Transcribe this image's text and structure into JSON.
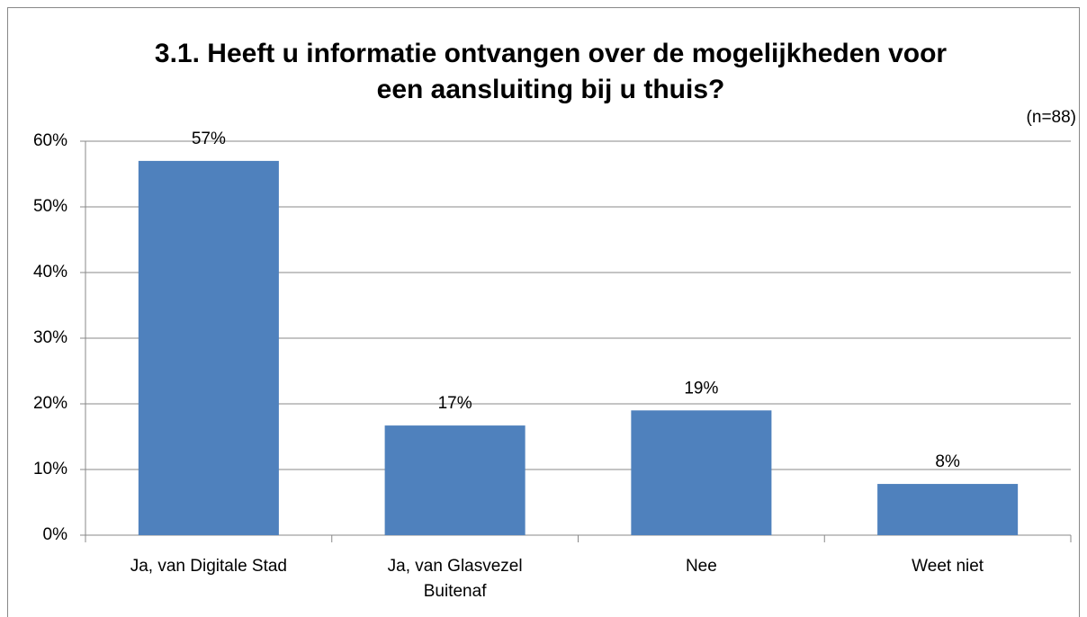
{
  "chart_data": {
    "type": "bar",
    "title": "3.1. Heeft u informatie ontvangen over de mogelijkheden voor een aansluiting bij u thuis?",
    "annotation": "(n=88)",
    "categories": [
      "Ja, van Digitale Stad",
      "Ja, van Glasvezel Buitenaf",
      "Nee",
      "Weet niet"
    ],
    "values": [
      57,
      16.7,
      19,
      7.8
    ],
    "value_labels": [
      "57%",
      "17%",
      "19%",
      "8%"
    ],
    "color": "#4f81bd",
    "ylim": [
      0,
      60
    ],
    "yticks": [
      {
        "value": 0,
        "label": "0%"
      },
      {
        "value": 10,
        "label": "10%"
      },
      {
        "value": 20,
        "label": "20%"
      },
      {
        "value": 30,
        "label": "30%"
      },
      {
        "value": 40,
        "label": "40%"
      },
      {
        "value": 50,
        "label": "50%"
      },
      {
        "value": 60,
        "label": "60%"
      }
    ],
    "grid": true
  }
}
